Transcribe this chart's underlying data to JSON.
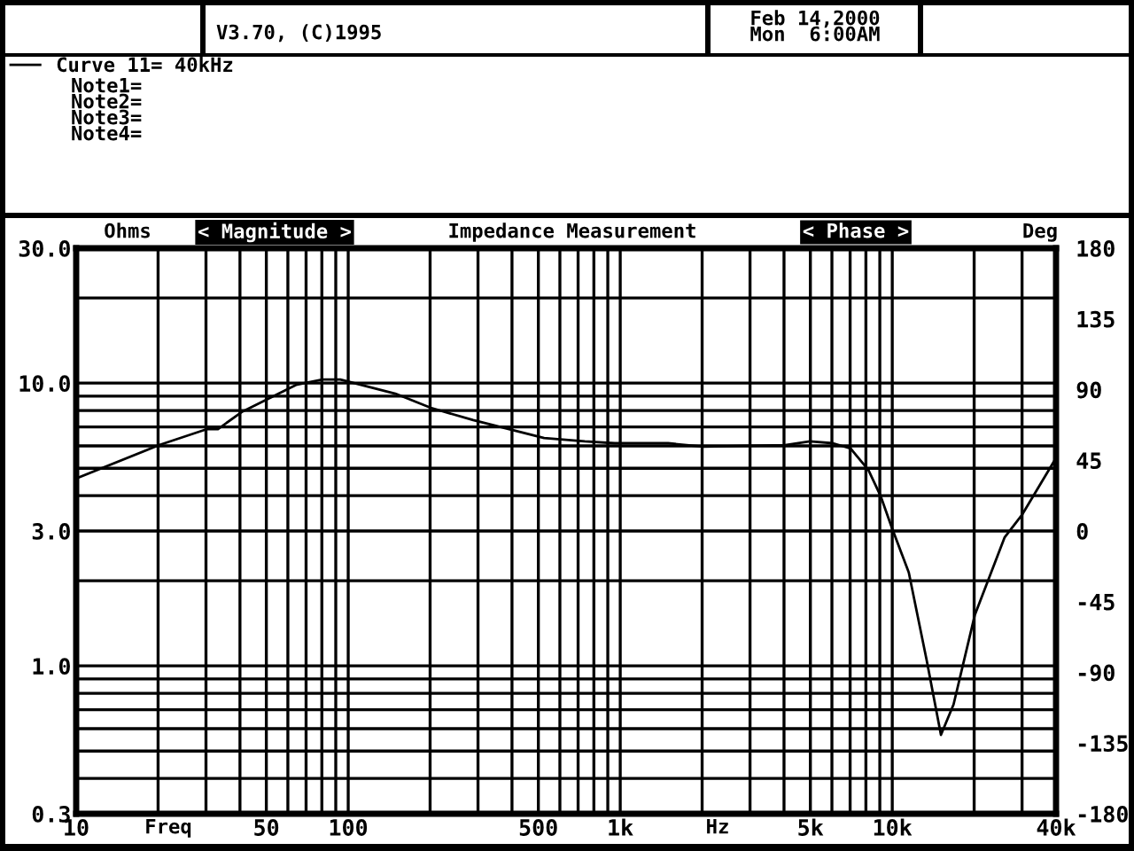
{
  "chart_data": {
    "type": "line",
    "title": "Impedance Measurement",
    "xlabel": "Freq",
    "ylabel": "Ohms",
    "y2label": "Deg",
    "annotations": [
      "V3.70, (C)1995",
      "Feb 14,2000",
      "Mon  6:00AM",
      "Note1=",
      "Note2=",
      "Note3=",
      "Note4=",
      "< Magnitude >",
      "< Phase >",
      "Hz"
    ],
    "log": "xy",
    "grid": true,
    "legend": "top left",
    "line_style": "solid",
    "marker": "none",
    "xlim": [
      10,
      40000
    ],
    "xticks": [
      {
        "value": 10,
        "label": "10"
      },
      {
        "value": 20,
        "label": null
      },
      {
        "value": 30,
        "label": null
      },
      {
        "value": 40,
        "label": null
      },
      {
        "value": 50,
        "label": "50"
      },
      {
        "value": 60,
        "label": null
      },
      {
        "value": 70,
        "label": null
      },
      {
        "value": 80,
        "label": null
      },
      {
        "value": 90,
        "label": null
      },
      {
        "value": 100,
        "label": "100"
      },
      {
        "value": 200,
        "label": null
      },
      {
        "value": 300,
        "label": null
      },
      {
        "value": 400,
        "label": null
      },
      {
        "value": 500,
        "label": "500"
      },
      {
        "value": 600,
        "label": null
      },
      {
        "value": 700,
        "label": null
      },
      {
        "value": 800,
        "label": null
      },
      {
        "value": 900,
        "label": null
      },
      {
        "value": 1000,
        "label": "1k"
      },
      {
        "value": 2000,
        "label": null
      },
      {
        "value": 3000,
        "label": null
      },
      {
        "value": 4000,
        "label": null
      },
      {
        "value": 5000,
        "label": "5k"
      },
      {
        "value": 6000,
        "label": null
      },
      {
        "value": 7000,
        "label": null
      },
      {
        "value": 8000,
        "label": null
      },
      {
        "value": 9000,
        "label": null
      },
      {
        "value": 10000,
        "label": "10k"
      },
      {
        "value": 20000,
        "label": null
      },
      {
        "value": 30000,
        "label": null
      },
      {
        "value": 40000,
        "label": "40k"
      }
    ],
    "ylim": [
      0.3,
      30
    ],
    "yticks": [
      {
        "value": 0.3,
        "label": "0.3"
      },
      {
        "value": 0.4,
        "label": null
      },
      {
        "value": 0.5,
        "label": null
      },
      {
        "value": 0.6,
        "label": null
      },
      {
        "value": 0.7,
        "label": null
      },
      {
        "value": 0.8,
        "label": null
      },
      {
        "value": 0.9,
        "label": null
      },
      {
        "value": 1,
        "label": "1.0"
      },
      {
        "value": 2,
        "label": null
      },
      {
        "value": 3,
        "label": "3.0"
      },
      {
        "value": 4,
        "label": null
      },
      {
        "value": 5,
        "label": null
      },
      {
        "value": 6,
        "label": null
      },
      {
        "value": 7,
        "label": null
      },
      {
        "value": 8,
        "label": null
      },
      {
        "value": 9,
        "label": null
      },
      {
        "value": 10,
        "label": "10.0"
      },
      {
        "value": 20,
        "label": null
      },
      {
        "value": 30,
        "label": "30.0"
      }
    ],
    "y2lim": [
      -180,
      180
    ],
    "y2ticks": [
      -180,
      -135,
      -90,
      -45,
      0,
      45,
      90,
      135,
      180
    ],
    "series": [
      {
        "name": "Curve 11= 40kHz",
        "color": "#000000",
        "x": [
          10,
          20.2,
          30.3,
          33.2,
          40.9,
          64.3,
          80.5,
          93.5,
          149,
          201,
          288,
          525,
          741,
          955,
          1500,
          2020,
          4040,
          4980,
          6050,
          7030,
          8170,
          9080,
          9930,
          11500,
          13400,
          15100,
          16800,
          20100,
          25900,
          30100,
          39400
        ],
        "values": [
          4.6,
          6.04,
          6.88,
          6.88,
          7.94,
          9.86,
          10.3,
          10.3,
          9.18,
          8.18,
          7.4,
          6.4,
          6.22,
          6.13,
          6.13,
          5.96,
          6.04,
          6.22,
          6.13,
          5.87,
          4.93,
          3.97,
          3.11,
          2.14,
          1.04,
          0.57,
          0.73,
          1.51,
          2.85,
          3.44,
          5.31
        ]
      }
    ]
  }
}
